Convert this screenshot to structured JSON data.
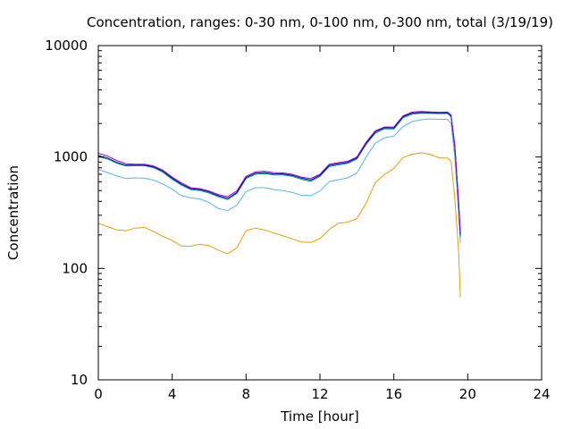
{
  "chart_data": {
    "type": "line",
    "title": "Concentration, ranges: 0-30 nm, 0-100 nm, 0-300 nm, total (3/19/19)",
    "xlabel": "Time [hour]",
    "ylabel": "Concentration",
    "xlim": [
      0,
      24
    ],
    "ylim": [
      10,
      10000
    ],
    "yscale": "log",
    "grid": false,
    "legend": "none",
    "xticks": [
      0,
      4,
      8,
      12,
      16,
      20,
      24
    ],
    "xtick_labels": [
      "0",
      "4",
      "8",
      "12",
      "16",
      "20",
      "24"
    ],
    "yticks": [
      10,
      100,
      1000,
      10000
    ],
    "ytick_labels": [
      "10",
      "100",
      "1000",
      "10000"
    ],
    "series": [
      {
        "color": "#e69f00",
        "x": [
          0,
          0.5,
          1,
          1.5,
          2,
          2.5,
          3,
          3.5,
          4,
          4.5,
          5,
          5.5,
          6,
          6.5,
          7,
          7.5,
          8,
          8.5,
          9,
          9.5,
          10,
          10.5,
          11,
          11.5,
          12,
          12.5,
          13,
          13.5,
          14,
          14.5,
          15,
          15.5,
          16,
          16.5,
          17,
          17.5,
          18,
          18.5,
          18.9,
          19.1,
          19.3,
          19.5,
          19.6
        ],
        "y": [
          255,
          237,
          222,
          218,
          230,
          233,
          214,
          194,
          178,
          159,
          158,
          165,
          160,
          146,
          135,
          153,
          218,
          230,
          222,
          208,
          196,
          184,
          173,
          171,
          185,
          223,
          255,
          260,
          280,
          385,
          590,
          700,
          790,
          990,
          1060,
          1090,
          1050,
          980,
          980,
          920,
          420,
          150,
          55
        ]
      },
      {
        "color": "#56b4e9",
        "x": [
          0,
          0.5,
          1,
          1.5,
          2,
          2.5,
          3,
          3.5,
          4,
          4.5,
          5,
          5.5,
          6,
          6.5,
          7,
          7.5,
          8,
          8.5,
          9,
          9.5,
          10,
          10.5,
          11,
          11.5,
          12,
          12.5,
          13,
          13.5,
          14,
          14.5,
          15,
          15.5,
          16,
          16.5,
          17,
          17.5,
          18,
          18.5,
          18.9,
          19.1,
          19.3,
          19.5,
          19.6
        ],
        "y": [
          775,
          725,
          675,
          640,
          650,
          645,
          620,
          570,
          515,
          450,
          430,
          420,
          390,
          345,
          330,
          370,
          490,
          530,
          530,
          510,
          500,
          480,
          455,
          450,
          495,
          600,
          625,
          650,
          720,
          1000,
          1330,
          1490,
          1540,
          1880,
          2080,
          2160,
          2200,
          2180,
          2180,
          2000,
          1000,
          330,
          170
        ]
      },
      {
        "color": "#009e73",
        "x": [
          0,
          0.5,
          1,
          1.5,
          2,
          2.5,
          3,
          3.5,
          4,
          4.5,
          5,
          5.5,
          6,
          6.5,
          7,
          7.5,
          8,
          8.5,
          9,
          9.5,
          10,
          10.5,
          11,
          11.5,
          12,
          12.5,
          13,
          13.5,
          14,
          14.5,
          15,
          15.5,
          16,
          16.5,
          17,
          17.5,
          18,
          18.5,
          18.9,
          19.1,
          19.3,
          19.5,
          19.6
        ],
        "y": [
          1010,
          960,
          880,
          830,
          835,
          835,
          800,
          730,
          630,
          560,
          510,
          500,
          475,
          440,
          415,
          470,
          640,
          700,
          710,
          690,
          690,
          670,
          630,
          605,
          670,
          820,
          850,
          875,
          960,
          1300,
          1640,
          1790,
          1780,
          2250,
          2420,
          2460,
          2460,
          2450,
          2460,
          2300,
          1200,
          380,
          190
        ]
      },
      {
        "color": "#0000b0",
        "x": [
          0,
          0.5,
          1,
          1.5,
          2,
          2.5,
          3,
          3.5,
          4,
          4.5,
          5,
          5.5,
          6,
          6.5,
          7,
          7.5,
          8,
          8.5,
          9,
          9.5,
          10,
          10.5,
          11,
          11.5,
          12,
          12.5,
          13,
          13.5,
          14,
          14.5,
          15,
          15.5,
          16,
          16.5,
          17,
          17.5,
          18,
          18.5,
          18.9,
          19.1,
          19.3,
          19.5,
          19.6
        ],
        "y": [
          1030,
          980,
          895,
          845,
          845,
          845,
          815,
          745,
          645,
          570,
          520,
          510,
          485,
          450,
          425,
          480,
          655,
          715,
          725,
          705,
          705,
          685,
          645,
          620,
          685,
          840,
          870,
          895,
          980,
          1330,
          1680,
          1830,
          1820,
          2300,
          2480,
          2510,
          2500,
          2490,
          2500,
          2350,
          1250,
          400,
          200
        ]
      },
      {
        "color": "#9400d3",
        "x": [
          0,
          0.5,
          1,
          1.5,
          2,
          2.5,
          3,
          3.5,
          4,
          4.5,
          5,
          5.5,
          6,
          6.5,
          7,
          7.5,
          8,
          8.5,
          9,
          9.5,
          10,
          10.5,
          11,
          11.5,
          12,
          12.5,
          13,
          13.5,
          14,
          14.5,
          15,
          15.5,
          16,
          16.5,
          17,
          17.5,
          18,
          18.5,
          18.9,
          19.1,
          19.3,
          19.5,
          19.6
        ],
        "y": [
          1080,
          1020,
          930,
          870,
          860,
          860,
          830,
          760,
          660,
          585,
          530,
          520,
          495,
          460,
          440,
          495,
          670,
          735,
          745,
          725,
          720,
          700,
          660,
          640,
          700,
          860,
          890,
          915,
          1000,
          1360,
          1720,
          1860,
          1860,
          2340,
          2530,
          2560,
          2540,
          2520,
          2530,
          2380,
          1280,
          410,
          210
        ]
      }
    ]
  }
}
